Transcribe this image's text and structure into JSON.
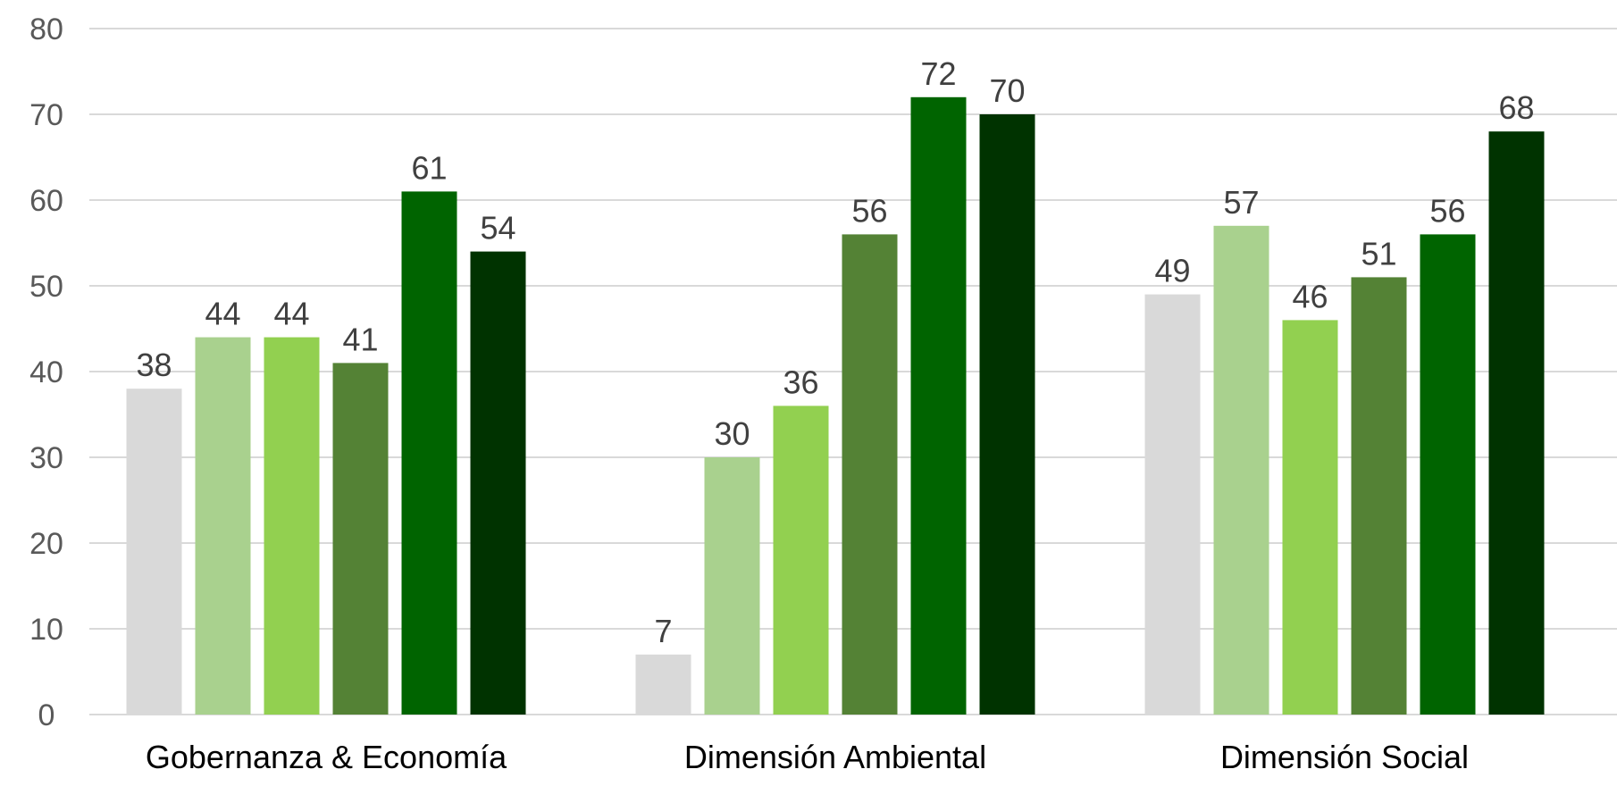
{
  "chart_data": {
    "type": "bar",
    "title": "",
    "xlabel": "",
    "ylabel": "",
    "ylim": [
      0,
      80
    ],
    "yticks": [
      0,
      10,
      20,
      30,
      40,
      50,
      60,
      70,
      80
    ],
    "grid": true,
    "legend": "none",
    "categories": [
      "Gobernanza & Economía",
      "Dimensión Ambiental",
      "Dimensión Social"
    ],
    "series": [
      {
        "color": "#d9d9d9",
        "values": [
          38,
          7,
          49
        ]
      },
      {
        "color": "#a9d18e",
        "values": [
          44,
          30,
          57
        ]
      },
      {
        "color": "#92d050",
        "values": [
          44,
          36,
          46
        ]
      },
      {
        "color": "#548235",
        "values": [
          41,
          56,
          51
        ]
      },
      {
        "color": "#006400",
        "values": [
          61,
          72,
          56
        ]
      },
      {
        "color": "#003300",
        "values": [
          54,
          70,
          68
        ]
      }
    ]
  }
}
